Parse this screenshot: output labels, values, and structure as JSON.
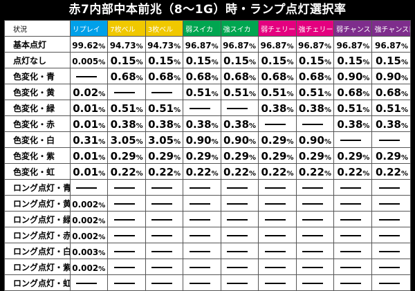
{
  "title": "赤7内部中本前兆（8～1G）時・ランプ点灯選択率",
  "header": {
    "status_label": "状況",
    "columns": [
      {
        "label": "リプレイ",
        "bg": "#00a0e9"
      },
      {
        "label": "7枚ベル",
        "bg": "#f0c800"
      },
      {
        "label": "3枚ベル",
        "bg": "#f0c800"
      },
      {
        "label": "弱スイカ",
        "bg": "#00a650"
      },
      {
        "label": "強スイカ",
        "bg": "#00a650"
      },
      {
        "label": "弱チェリー",
        "bg": "#e4007f"
      },
      {
        "label": "強チェリー",
        "bg": "#e4007f"
      },
      {
        "label": "弱チャンス目",
        "bg": "#7e2d8c"
      },
      {
        "label": "強チャンス目",
        "bg": "#7e2d8c"
      }
    ]
  },
  "rows": [
    {
      "label": "基本点灯",
      "values": [
        "99.62",
        "94.73",
        "94.73",
        "96.87",
        "96.87",
        "96.87",
        "96.87",
        "96.87",
        "96.87"
      ]
    },
    {
      "label": "点灯なし",
      "values": [
        "0.005",
        "0.15",
        "0.15",
        "0.15",
        "0.15",
        "0.15",
        "0.15",
        "0.15",
        "0.15"
      ]
    },
    {
      "label": "色変化・青",
      "values": [
        null,
        "0.68",
        "0.68",
        "0.68",
        "0.68",
        "0.68",
        "0.68",
        "0.90",
        "0.90"
      ]
    },
    {
      "label": "色変化・黄",
      "values": [
        "0.02",
        null,
        null,
        "0.51",
        "0.51",
        "0.51",
        "0.51",
        "0.68",
        "0.68"
      ]
    },
    {
      "label": "色変化・緑",
      "values": [
        "0.01",
        "0.51",
        "0.51",
        null,
        null,
        "0.38",
        "0.38",
        "0.51",
        "0.51"
      ]
    },
    {
      "label": "色変化・赤",
      "values": [
        "0.01",
        "0.38",
        "0.38",
        "0.38",
        "0.38",
        null,
        null,
        "0.38",
        "0.38"
      ]
    },
    {
      "label": "色変化・白",
      "values": [
        "0.31",
        "3.05",
        "3.05",
        "0.90",
        "0.90",
        "0.29",
        "0.90",
        null,
        null
      ]
    },
    {
      "label": "色変化・紫",
      "values": [
        "0.01",
        "0.29",
        "0.29",
        "0.29",
        "0.29",
        "0.29",
        "0.29",
        "0.29",
        "0.29"
      ]
    },
    {
      "label": "色変化・虹",
      "values": [
        "0.01",
        "0.22",
        "0.22",
        "0.22",
        "0.22",
        "0.22",
        "0.22",
        "0.22",
        "0.22"
      ]
    },
    {
      "label": "ロング点灯・青",
      "values": [
        null,
        null,
        null,
        null,
        null,
        null,
        null,
        null,
        null
      ]
    },
    {
      "label": "ロング点灯・黄",
      "values": [
        "0.002",
        null,
        null,
        null,
        null,
        null,
        null,
        null,
        null
      ]
    },
    {
      "label": "ロング点灯・緑",
      "values": [
        "0.002",
        null,
        null,
        null,
        null,
        null,
        null,
        null,
        null
      ]
    },
    {
      "label": "ロング点灯・赤",
      "values": [
        "0.002",
        null,
        null,
        null,
        null,
        null,
        null,
        null,
        null
      ]
    },
    {
      "label": "ロング点灯・白",
      "values": [
        "0.003",
        null,
        null,
        null,
        null,
        null,
        null,
        null,
        null
      ]
    },
    {
      "label": "ロング点灯・紫",
      "values": [
        "0.002",
        null,
        null,
        null,
        null,
        null,
        null,
        null,
        null
      ]
    },
    {
      "label": "ロング点灯・虹",
      "values": [
        null,
        null,
        null,
        null,
        null,
        null,
        null,
        null,
        null
      ]
    }
  ],
  "unit": "%"
}
